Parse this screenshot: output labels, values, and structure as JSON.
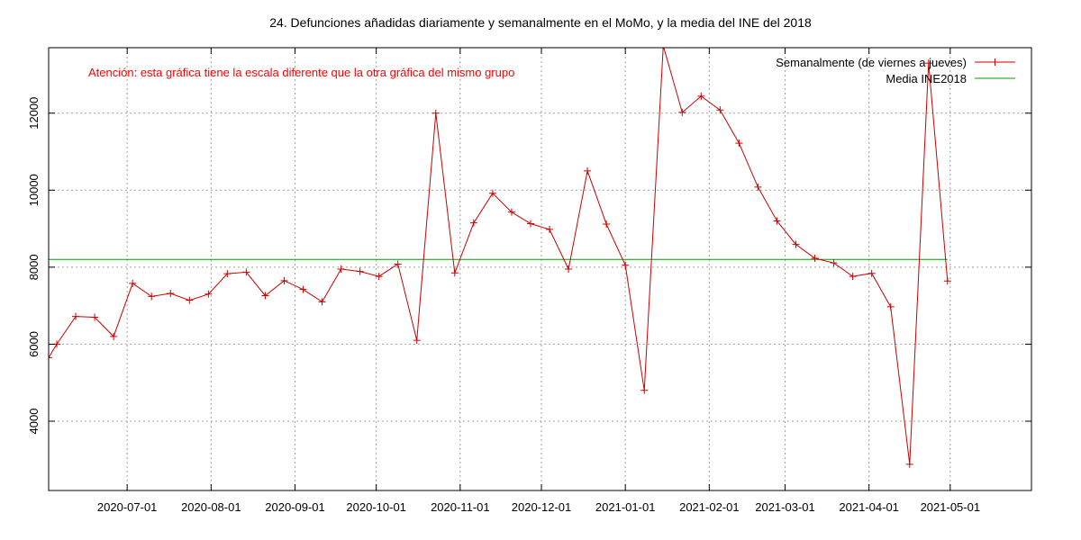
{
  "chart_data": {
    "type": "line",
    "title": "24. Defunciones añadidas diariamente y semanalmente en el MoMo, y la media del INE del 2018",
    "annotation": "Atención: esta gráfica tiene la escala diferente que la otra gráfica del mismo grupo",
    "annotation_color": "#ff0000",
    "xlabel": "",
    "ylabel": "",
    "x_ticks": [
      "2020-07-01",
      "2020-08-01",
      "2020-09-01",
      "2020-10-01",
      "2020-11-01",
      "2020-12-01",
      "2021-01-01",
      "2021-02-01",
      "2021-03-01",
      "2021-04-01",
      "2021-05-01"
    ],
    "x_range": [
      "2020-06-02",
      "2021-05-31"
    ],
    "y_ticks": [
      4000,
      6000,
      8000,
      10000,
      12000
    ],
    "ylim": [
      2200,
      13700
    ],
    "grid": true,
    "legend_position": "top-right",
    "series": [
      {
        "name": "Semanalmente (de viernes a jueves)",
        "color": "#cc0000",
        "marker": "plus",
        "x": [
          "2020-06-02",
          "2020-06-05",
          "2020-06-12",
          "2020-06-19",
          "2020-06-26",
          "2020-07-03",
          "2020-07-10",
          "2020-07-17",
          "2020-07-24",
          "2020-07-31",
          "2020-08-07",
          "2020-08-14",
          "2020-08-21",
          "2020-08-28",
          "2020-09-04",
          "2020-09-11",
          "2020-09-18",
          "2020-09-25",
          "2020-10-02",
          "2020-10-09",
          "2020-10-16",
          "2020-10-23",
          "2020-10-30",
          "2020-11-06",
          "2020-11-13",
          "2020-11-20",
          "2020-11-27",
          "2020-12-04",
          "2020-12-11",
          "2020-12-18",
          "2020-12-25",
          "2021-01-01",
          "2021-01-08",
          "2021-01-15",
          "2021-01-22",
          "2021-01-29",
          "2021-02-05",
          "2021-02-12",
          "2021-02-19",
          "2021-02-26",
          "2021-03-05",
          "2021-03-12",
          "2021-03-19",
          "2021-03-26",
          "2021-04-02",
          "2021-04-09",
          "2021-04-16",
          "2021-04-23",
          "2021-04-30"
        ],
        "values": [
          5650,
          6000,
          6720,
          6700,
          6200,
          7580,
          7240,
          7320,
          7140,
          7300,
          7830,
          7870,
          7260,
          7650,
          7420,
          7100,
          7950,
          7890,
          7760,
          8080,
          6100,
          12000,
          7850,
          9150,
          9920,
          9430,
          9130,
          8980,
          7950,
          10500,
          9120,
          8050,
          4800,
          13750,
          12020,
          12440,
          12080,
          11220,
          10080,
          9200,
          8590,
          8230,
          8110,
          7760,
          7840,
          6970,
          2880,
          13300,
          7640
        ]
      },
      {
        "name": "Media INE2018",
        "color": "#00a000",
        "x": [
          "2020-06-02",
          "2021-04-30"
        ],
        "values": [
          8200,
          8200
        ]
      }
    ]
  }
}
